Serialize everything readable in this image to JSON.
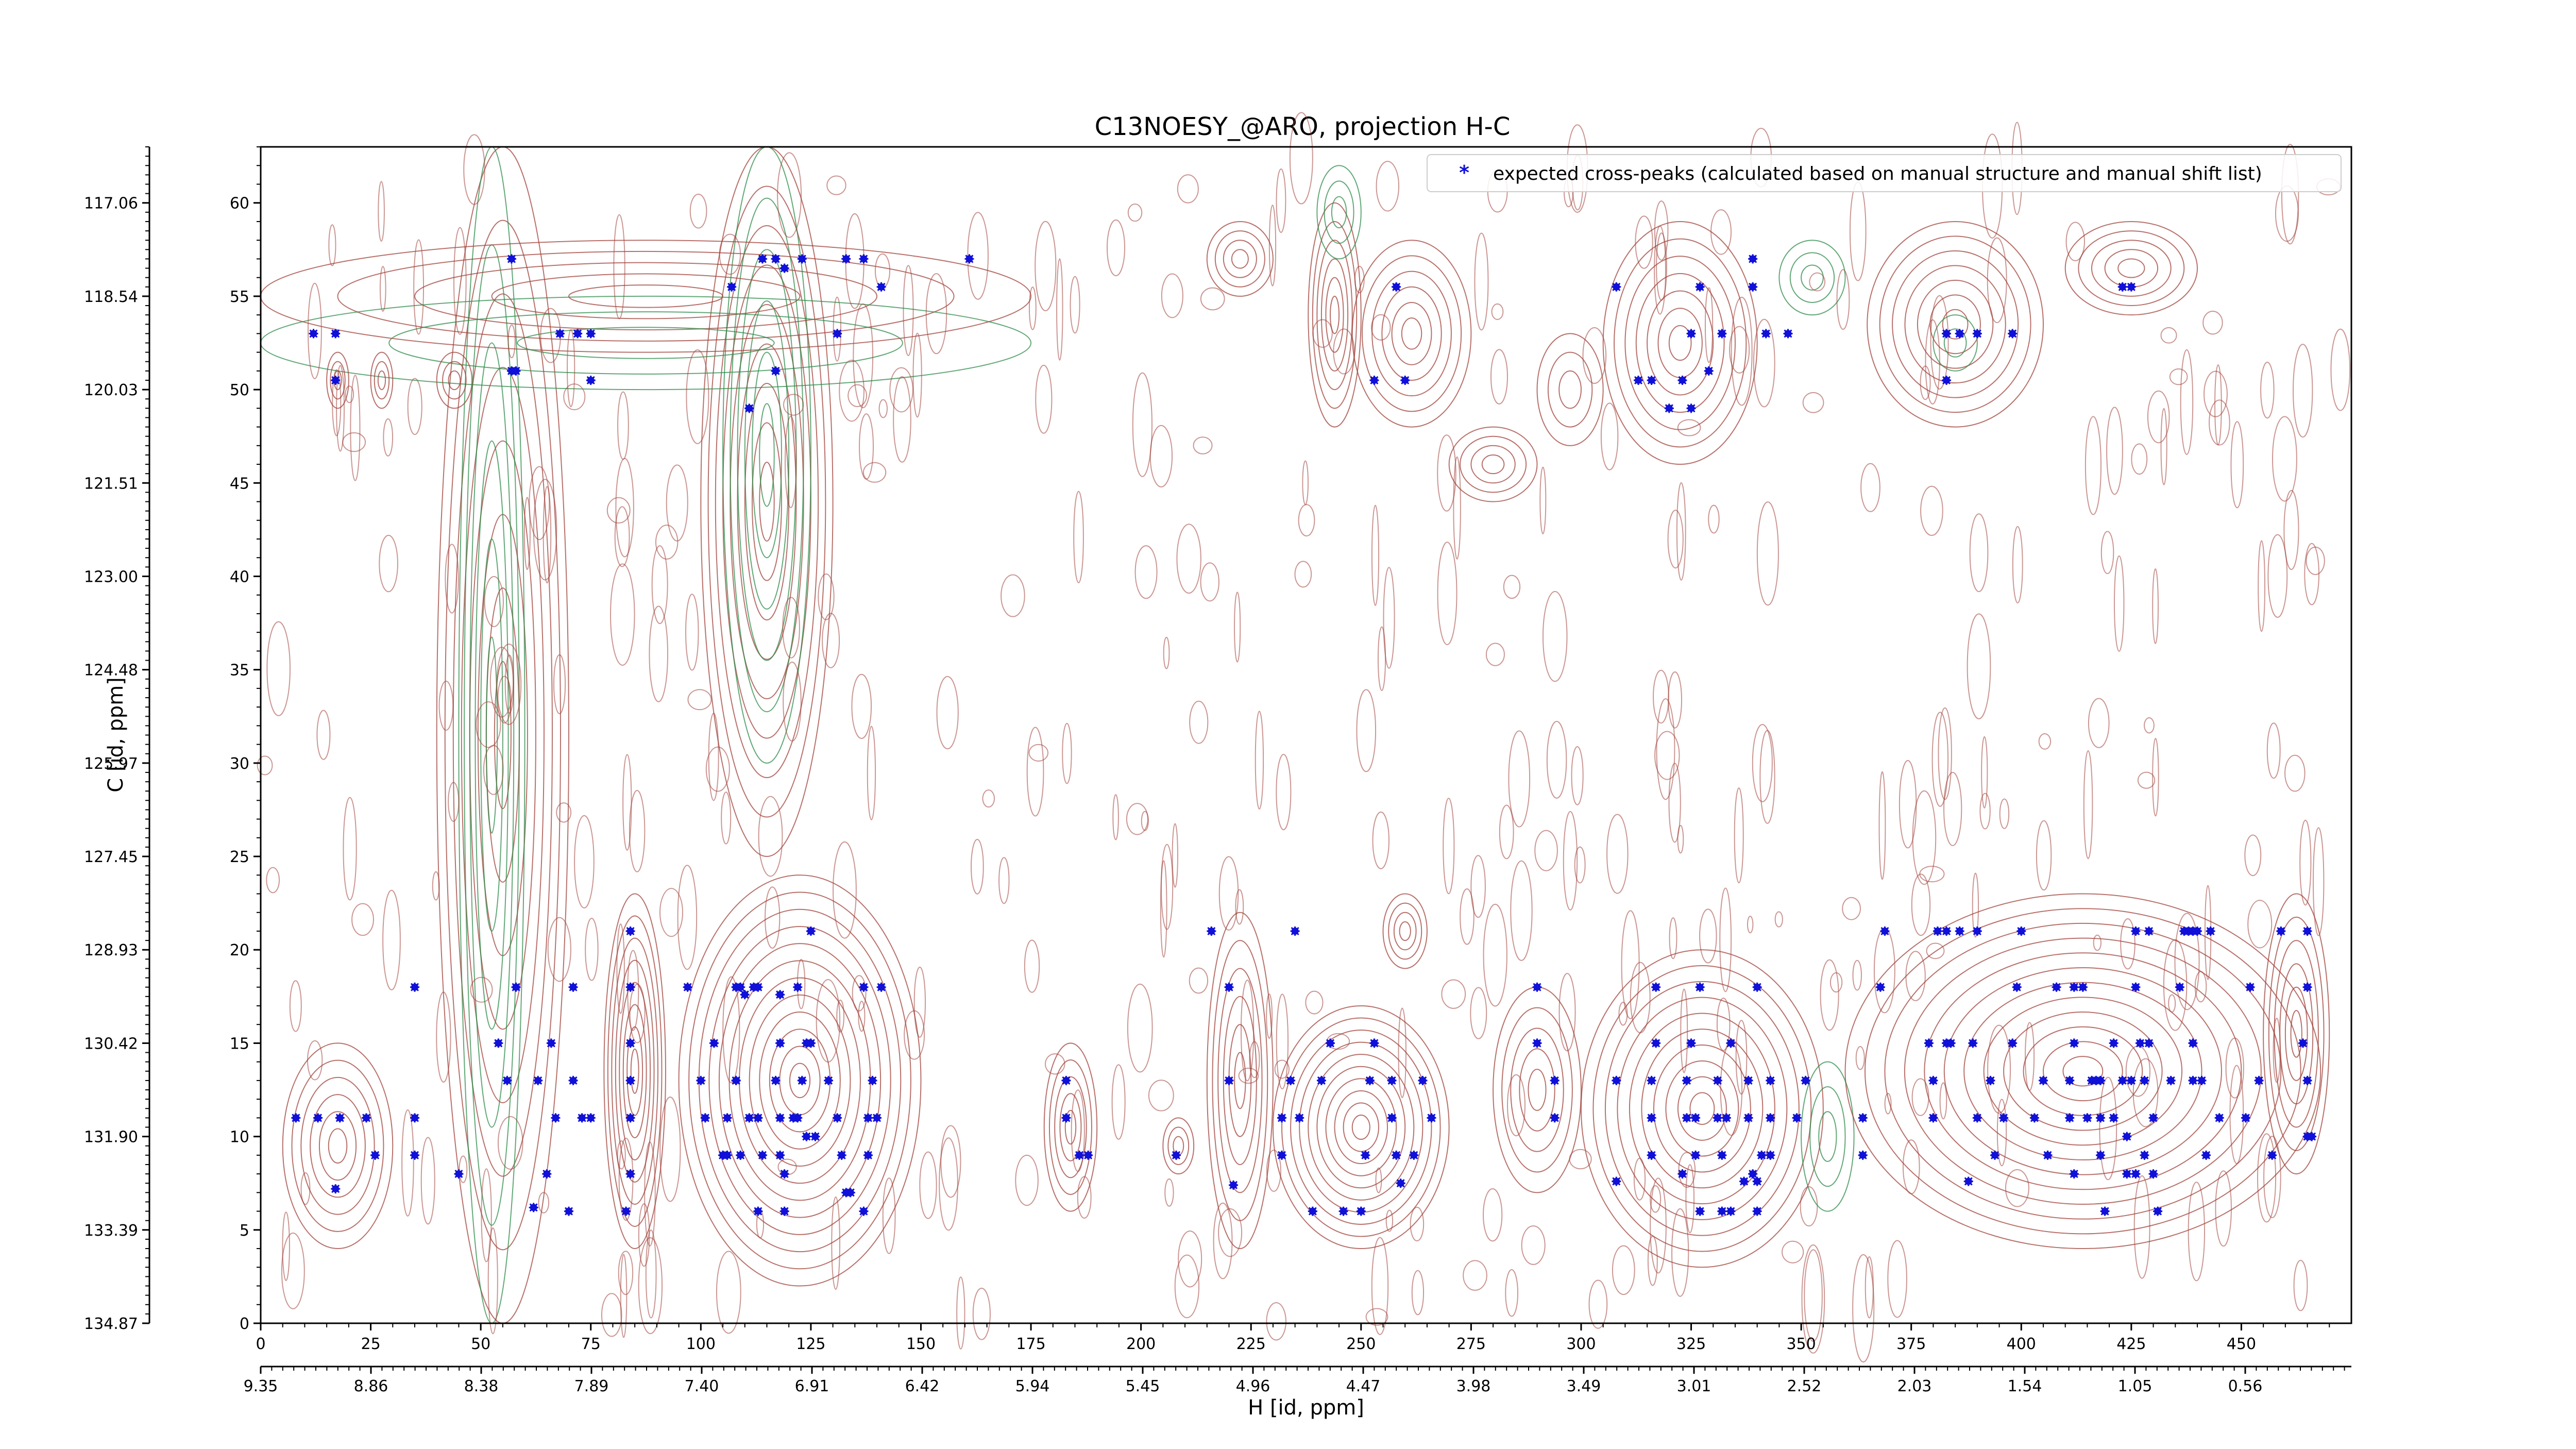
{
  "chart_data": {
    "type": "scatter",
    "title": "C13NOESY_@ARO, projection H-C",
    "xlabel": "H [id, ppm]",
    "ylabel": "C [id, ppm]",
    "xlim": [
      0,
      475
    ],
    "ylim": [
      0,
      63
    ],
    "x_ticks": [
      0,
      25,
      50,
      75,
      100,
      125,
      150,
      175,
      200,
      225,
      250,
      275,
      300,
      325,
      350,
      375,
      400,
      425,
      450
    ],
    "x_ticks_secondary": [
      "9.35",
      "8.86",
      "8.38",
      "7.89",
      "7.40",
      "6.91",
      "6.42",
      "5.94",
      "5.45",
      "4.96",
      "4.47",
      "3.98",
      "3.49",
      "3.01",
      "2.52",
      "2.03",
      "1.54",
      "1.05",
      "0.56"
    ],
    "y_ticks": [
      0,
      5,
      10,
      15,
      20,
      25,
      30,
      35,
      40,
      45,
      50,
      55,
      60
    ],
    "y_ticks_secondary": [
      "134.87",
      "133.39",
      "131.90",
      "130.42",
      "128.93",
      "127.45",
      "125.97",
      "124.48",
      "123.00",
      "121.51",
      "120.03",
      "118.54",
      "117.06"
    ],
    "legend": {
      "placement": "top-right",
      "label": "expected cross-peaks (calculated based on manual structure and manual shift list)"
    },
    "grid": false,
    "colors": {
      "marker": "#1010d8",
      "positive_contour": "#a0423a",
      "negative_contour": "#2e8b4a"
    },
    "series": [
      {
        "name": "expected cross-peaks (calculated based on manual structure and manual shift list)",
        "points": [
          [
            12,
            53
          ],
          [
            17,
            53
          ],
          [
            17,
            50.5
          ],
          [
            57,
            57
          ],
          [
            57,
            51
          ],
          [
            58,
            51
          ],
          [
            68,
            53
          ],
          [
            72,
            53
          ],
          [
            75,
            53
          ],
          [
            75,
            50.5
          ],
          [
            107,
            55.5
          ],
          [
            114,
            57
          ],
          [
            117,
            57
          ],
          [
            119,
            56.5
          ],
          [
            123,
            57
          ],
          [
            111,
            49
          ],
          [
            117,
            51
          ],
          [
            131,
            53
          ],
          [
            133,
            57
          ],
          [
            137,
            57
          ],
          [
            141,
            55.5
          ],
          [
            161,
            57
          ],
          [
            258,
            55.5
          ],
          [
            253,
            50.5
          ],
          [
            260,
            50.5
          ],
          [
            308,
            55.5
          ],
          [
            313,
            50.5
          ],
          [
            316,
            50.5
          ],
          [
            320,
            49
          ],
          [
            323,
            50.5
          ],
          [
            325,
            49
          ],
          [
            329,
            51
          ],
          [
            325,
            53
          ],
          [
            332,
            53
          ],
          [
            342,
            53
          ],
          [
            347,
            53
          ],
          [
            327,
            55.5
          ],
          [
            339,
            57
          ],
          [
            339,
            55.5
          ],
          [
            383,
            53
          ],
          [
            383,
            50.5
          ],
          [
            386,
            53
          ],
          [
            390,
            53
          ],
          [
            398,
            53
          ],
          [
            425,
            55.5
          ],
          [
            423,
            55.5
          ],
          [
            8,
            11
          ],
          [
            13,
            11
          ],
          [
            18,
            11
          ],
          [
            24,
            11
          ],
          [
            17,
            7.2
          ],
          [
            26,
            9
          ],
          [
            35,
            9
          ],
          [
            35,
            11
          ],
          [
            45,
            8
          ],
          [
            35,
            18
          ],
          [
            56,
            13
          ],
          [
            54,
            15
          ],
          [
            58,
            18
          ],
          [
            62,
            6.2
          ],
          [
            63,
            13
          ],
          [
            65,
            8
          ],
          [
            66,
            15
          ],
          [
            67,
            11
          ],
          [
            70,
            6
          ],
          [
            71,
            13
          ],
          [
            71,
            18
          ],
          [
            73,
            11
          ],
          [
            75,
            11
          ],
          [
            84,
            21
          ],
          [
            84,
            18
          ],
          [
            84,
            15
          ],
          [
            84,
            13
          ],
          [
            84,
            11
          ],
          [
            84,
            8
          ],
          [
            83,
            6
          ],
          [
            97,
            18
          ],
          [
            100,
            13
          ],
          [
            101,
            11
          ],
          [
            103,
            15
          ],
          [
            105,
            9
          ],
          [
            108,
            13
          ],
          [
            109,
            18
          ],
          [
            110,
            17.6
          ],
          [
            111,
            11
          ],
          [
            113,
            11
          ],
          [
            114,
            9
          ],
          [
            117,
            13
          ],
          [
            118,
            15
          ],
          [
            118,
            9
          ],
          [
            118,
            11
          ],
          [
            119,
            6
          ],
          [
            121,
            11
          ],
          [
            122,
            11
          ],
          [
            123,
            13
          ],
          [
            124,
            15
          ],
          [
            125,
            15
          ],
          [
            125,
            21
          ],
          [
            122,
            18
          ],
          [
            118,
            17.6
          ],
          [
            113,
            18
          ],
          [
            112,
            18
          ],
          [
            108,
            18
          ],
          [
            108,
            13
          ],
          [
            106,
            9
          ],
          [
            106,
            11
          ],
          [
            109,
            9
          ],
          [
            113,
            6
          ],
          [
            119,
            8
          ],
          [
            124,
            10
          ],
          [
            126,
            10
          ],
          [
            129,
            13
          ],
          [
            131,
            11
          ],
          [
            132,
            9
          ],
          [
            133,
            7
          ],
          [
            134,
            7
          ],
          [
            137,
            6
          ],
          [
            138,
            9
          ],
          [
            138,
            11
          ],
          [
            139,
            13
          ],
          [
            137,
            18
          ],
          [
            141,
            18
          ],
          [
            140,
            11
          ],
          [
            183,
            13
          ],
          [
            183,
            11
          ],
          [
            186,
            9
          ],
          [
            188,
            9
          ],
          [
            208,
            9
          ],
          [
            216,
            21
          ],
          [
            220,
            18
          ],
          [
            220,
            13
          ],
          [
            221,
            7.4
          ],
          [
            232,
            11
          ],
          [
            232,
            9
          ],
          [
            234,
            13
          ],
          [
            235,
            21
          ],
          [
            236,
            11
          ],
          [
            239,
            6
          ],
          [
            241,
            13
          ],
          [
            243,
            15
          ],
          [
            246,
            6
          ],
          [
            250,
            6
          ],
          [
            251,
            9
          ],
          [
            252,
            13
          ],
          [
            253,
            15
          ],
          [
            257,
            13
          ],
          [
            257,
            11
          ],
          [
            258,
            9
          ],
          [
            259,
            7.5
          ],
          [
            262,
            9
          ],
          [
            264,
            13
          ],
          [
            266,
            11
          ],
          [
            290,
            15
          ],
          [
            290,
            18
          ],
          [
            294,
            11
          ],
          [
            294,
            13
          ],
          [
            308,
            13
          ],
          [
            308,
            7.6
          ],
          [
            316,
            11
          ],
          [
            316,
            9
          ],
          [
            316,
            13
          ],
          [
            317,
            15
          ],
          [
            317,
            18
          ],
          [
            323,
            8
          ],
          [
            324,
            11
          ],
          [
            324,
            13
          ],
          [
            325,
            15
          ],
          [
            326,
            9
          ],
          [
            326,
            11
          ],
          [
            327,
            6
          ],
          [
            327,
            18
          ],
          [
            331,
            11
          ],
          [
            331,
            13
          ],
          [
            332,
            6
          ],
          [
            332,
            9
          ],
          [
            333,
            11
          ],
          [
            334,
            6
          ],
          [
            334,
            15
          ],
          [
            337,
            7.6
          ],
          [
            338,
            13
          ],
          [
            338,
            11
          ],
          [
            339,
            8
          ],
          [
            340,
            7.6
          ],
          [
            341,
            9
          ],
          [
            340,
            6
          ],
          [
            340,
            18
          ],
          [
            343,
            9
          ],
          [
            343,
            11
          ],
          [
            343,
            13
          ],
          [
            349,
            11
          ],
          [
            351,
            13
          ],
          [
            364,
            11
          ],
          [
            364,
            9
          ],
          [
            368,
            18
          ],
          [
            369,
            21
          ],
          [
            379,
            15
          ],
          [
            380,
            11
          ],
          [
            380,
            13
          ],
          [
            381,
            21
          ],
          [
            383,
            21
          ],
          [
            383,
            15
          ],
          [
            384,
            15
          ],
          [
            386,
            21
          ],
          [
            388,
            7.6
          ],
          [
            389,
            15
          ],
          [
            390,
            21
          ],
          [
            390,
            11
          ],
          [
            393,
            13
          ],
          [
            394,
            9
          ],
          [
            396,
            11
          ],
          [
            398,
            15
          ],
          [
            399,
            18
          ],
          [
            400,
            21
          ],
          [
            403,
            11
          ],
          [
            405,
            13
          ],
          [
            406,
            9
          ],
          [
            408,
            18
          ],
          [
            411,
            11
          ],
          [
            411,
            13
          ],
          [
            412,
            18
          ],
          [
            412,
            15
          ],
          [
            412,
            8
          ],
          [
            414,
            18
          ],
          [
            415,
            11
          ],
          [
            416,
            13
          ],
          [
            417,
            13
          ],
          [
            418,
            13
          ],
          [
            418,
            11
          ],
          [
            418,
            9
          ],
          [
            419,
            6
          ],
          [
            421,
            11
          ],
          [
            421,
            15
          ],
          [
            423,
            13
          ],
          [
            424,
            8
          ],
          [
            424,
            10
          ],
          [
            425,
            13
          ],
          [
            426,
            8
          ],
          [
            426,
            18
          ],
          [
            426,
            21
          ],
          [
            427,
            15
          ],
          [
            428,
            9
          ],
          [
            428,
            13
          ],
          [
            429,
            15
          ],
          [
            429,
            21
          ],
          [
            430,
            11
          ],
          [
            430,
            8
          ],
          [
            431,
            6
          ],
          [
            434,
            13
          ],
          [
            436,
            18
          ],
          [
            437,
            21
          ],
          [
            438,
            21
          ],
          [
            439,
            15
          ],
          [
            439,
            13
          ],
          [
            439,
            21
          ],
          [
            440,
            21
          ],
          [
            441,
            13
          ],
          [
            442,
            9
          ],
          [
            443,
            21
          ],
          [
            445,
            11
          ],
          [
            451,
            11
          ],
          [
            452,
            18
          ],
          [
            454,
            13
          ],
          [
            457,
            9
          ],
          [
            459,
            21
          ],
          [
            464,
            15
          ],
          [
            465,
            21
          ],
          [
            465,
            18
          ],
          [
            465,
            13
          ],
          [
            465,
            10
          ],
          [
            466,
            10
          ]
        ]
      }
    ]
  }
}
